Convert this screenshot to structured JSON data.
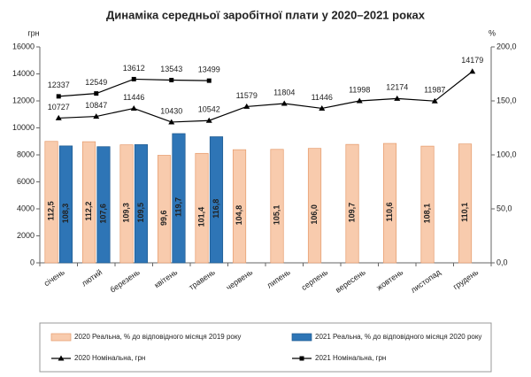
{
  "chart_data": {
    "type": "bar-line",
    "title": "Динаміка середньої заробітної плати у 2020–2021 роках",
    "y_label": "грн",
    "y2_label": "%",
    "categories": [
      "січень",
      "лютий",
      "березень",
      "квітень",
      "травень",
      "червень",
      "липень",
      "серпень",
      "вересень",
      "жовтень",
      "листопад",
      "грудень"
    ],
    "ylim": [
      0,
      16000
    ],
    "yticks": [
      0,
      2000,
      4000,
      6000,
      8000,
      10000,
      12000,
      14000,
      16000
    ],
    "y2lim": [
      0,
      200
    ],
    "y2ticks": [
      {
        "value": 0,
        "label": "0,0"
      },
      {
        "value": 50,
        "label": "50,0"
      },
      {
        "value": 100,
        "label": "100,0"
      },
      {
        "value": 150,
        "label": "150,0"
      },
      {
        "value": 200,
        "label": "200,0"
      }
    ],
    "grid": false,
    "series": [
      {
        "name": "2020 Реальна, % до відповідного місяця 2019 року",
        "type": "bar",
        "axis": "y2",
        "color": "#f8cbad",
        "values": [
          112.5,
          112.2,
          109.3,
          99.6,
          101.4,
          104.8,
          105.1,
          106.0,
          109.7,
          110.6,
          108.1,
          110.1
        ],
        "value_labels": [
          "112,5",
          "112,2",
          "109,3",
          "99,6",
          "101,4",
          "104,8",
          "105,1",
          "106,0",
          "109,7",
          "110,6",
          "108,1",
          "110,1"
        ]
      },
      {
        "name": "2021 Реальна, % до відповідного місяця 2020 року",
        "type": "bar",
        "axis": "y2",
        "color": "#2e75b6",
        "values": [
          108.3,
          107.6,
          109.5,
          119.7,
          116.8,
          null,
          null,
          null,
          null,
          null,
          null,
          null
        ],
        "value_labels": [
          "108,3",
          "107,6",
          "109,5",
          "119,7",
          "116,8",
          null,
          null,
          null,
          null,
          null,
          null,
          null
        ]
      },
      {
        "name": "2020 Номінальна, грн",
        "type": "line",
        "marker": "triangle",
        "color": "#000000",
        "values": [
          10727,
          10847,
          11446,
          10430,
          10542,
          11579,
          11804,
          11446,
          11998,
          12174,
          11987,
          14179
        ]
      },
      {
        "name": "2021 Номінальна, грн",
        "type": "line",
        "marker": "square",
        "color": "#000000",
        "values": [
          12337,
          12549,
          13612,
          13543,
          13499,
          null,
          null,
          null,
          null,
          null,
          null,
          null
        ]
      }
    ]
  }
}
